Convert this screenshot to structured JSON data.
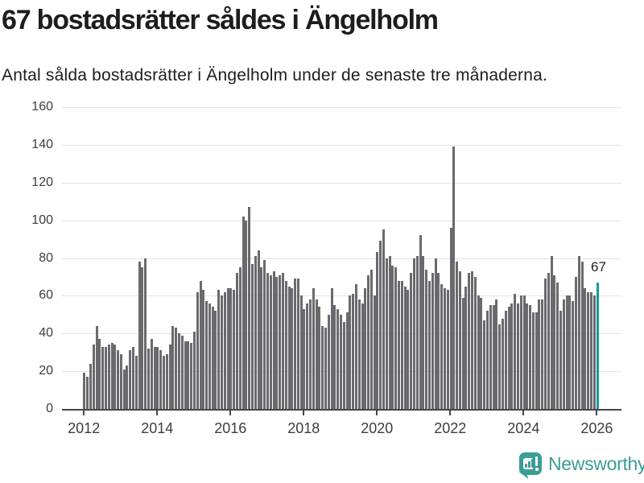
{
  "header": {
    "title": "67 bostadsrätter såldes i Ängelholm",
    "subtitle": "Antal sålda bostadsrätter i Ängelholm under de senaste tre månaderna."
  },
  "chart_data": {
    "type": "bar",
    "title": "67 bostadsrätter såldes i Ängelholm",
    "subtitle": "Antal sålda bostadsrätter i Ängelholm under de senaste tre månaderna.",
    "x_unit": "month",
    "x_start": "2012-01",
    "x_end": "2026-01",
    "ylim": [
      0,
      160
    ],
    "yticks": [
      0,
      20,
      40,
      60,
      80,
      100,
      120,
      140,
      160
    ],
    "xticks": [
      "2012",
      "2014",
      "2016",
      "2018",
      "2020",
      "2022",
      "2024",
      "2026"
    ],
    "grid": true,
    "bar_color": "#6a6a6e",
    "highlight_color": "#139c9c",
    "highlight_last": true,
    "annotation_label": "67",
    "values": [
      19,
      17,
      24,
      34,
      44,
      37,
      33,
      33,
      34,
      35,
      34,
      31,
      29,
      21,
      23,
      31,
      33,
      28,
      78,
      75,
      80,
      32,
      37,
      33,
      33,
      31,
      28,
      29,
      34,
      44,
      43,
      40,
      39,
      36,
      36,
      35,
      41,
      62,
      68,
      63,
      57,
      56,
      54,
      52,
      63,
      60,
      62,
      64,
      64,
      63,
      72,
      75,
      102,
      100,
      107,
      77,
      81,
      84,
      75,
      79,
      72,
      71,
      73,
      70,
      71,
      72,
      68,
      65,
      64,
      69,
      69,
      60,
      53,
      56,
      58,
      64,
      58,
      54,
      44,
      43,
      50,
      64,
      55,
      53,
      50,
      46,
      51,
      60,
      61,
      66,
      58,
      56,
      64,
      71,
      74,
      60,
      83,
      89,
      95,
      80,
      81,
      76,
      75,
      68,
      68,
      65,
      63,
      72,
      80,
      81,
      92,
      81,
      74,
      68,
      72,
      80,
      72,
      66,
      64,
      63,
      96,
      139,
      78,
      73,
      59,
      65,
      72,
      73,
      70,
      60,
      59,
      47,
      52,
      55,
      55,
      58,
      45,
      48,
      52,
      54,
      56,
      61,
      56,
      60,
      60,
      56,
      55,
      51,
      51,
      58,
      58,
      69,
      72,
      81,
      71,
      67,
      52,
      58,
      60,
      60,
      57,
      70,
      81,
      78,
      64,
      62,
      62,
      60,
      67
    ]
  },
  "footer": {
    "brand": "Newsworthy",
    "brand_color": "#3b9d96",
    "icon": "newsworthy-bubble-chart-icon"
  }
}
